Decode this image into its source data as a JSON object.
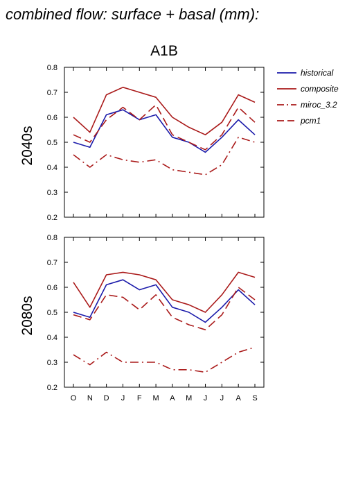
{
  "page": {
    "title": "combined flow: surface + basal (mm):"
  },
  "chart_data": {
    "type": "line",
    "title": "A1B",
    "categories": [
      "O",
      "N",
      "D",
      "J",
      "F",
      "M",
      "A",
      "M",
      "J",
      "J",
      "A",
      "S"
    ],
    "ylim": [
      0.2,
      0.8
    ],
    "yticks": [
      "0.2",
      "0.3",
      "0.4",
      "0.5",
      "0.6",
      "0.7",
      "0.8"
    ],
    "grid": false,
    "legend_placement": "right",
    "legend": [
      {
        "name": "historical",
        "color": "#1a1aaa",
        "dash": "solid"
      },
      {
        "name": "composite",
        "color": "#aa1a1a",
        "dash": "solid"
      },
      {
        "name": "miroc_3.2",
        "color": "#aa1a1a",
        "dash": "dashdot"
      },
      {
        "name": "pcm1",
        "color": "#aa1a1a",
        "dash": "longdash"
      }
    ],
    "panels": [
      {
        "ylabel": "2040s",
        "series": [
          {
            "name": "historical",
            "values": [
              0.5,
              0.48,
              0.61,
              0.63,
              0.59,
              0.61,
              0.52,
              0.5,
              0.46,
              0.52,
              0.59,
              0.53
            ]
          },
          {
            "name": "composite",
            "values": [
              0.6,
              0.54,
              0.69,
              0.72,
              0.7,
              0.68,
              0.6,
              0.56,
              0.53,
              0.58,
              0.69,
              0.66
            ]
          },
          {
            "name": "miroc_3.2",
            "values": [
              0.45,
              0.4,
              0.45,
              0.43,
              0.42,
              0.43,
              0.39,
              0.38,
              0.37,
              0.41,
              0.52,
              0.5
            ]
          },
          {
            "name": "pcm1",
            "values": [
              0.53,
              0.5,
              0.59,
              0.64,
              0.59,
              0.65,
              0.53,
              0.5,
              0.47,
              0.53,
              0.64,
              0.58
            ]
          }
        ]
      },
      {
        "ylabel": "2080s",
        "series": [
          {
            "name": "historical",
            "values": [
              0.5,
              0.48,
              0.61,
              0.63,
              0.59,
              0.61,
              0.52,
              0.5,
              0.46,
              0.52,
              0.59,
              0.53
            ]
          },
          {
            "name": "composite",
            "values": [
              0.62,
              0.52,
              0.65,
              0.66,
              0.65,
              0.63,
              0.55,
              0.53,
              0.5,
              0.57,
              0.66,
              0.64
            ]
          },
          {
            "name": "miroc_3.2",
            "values": [
              0.33,
              0.29,
              0.34,
              0.3,
              0.3,
              0.3,
              0.27,
              0.27,
              0.26,
              0.3,
              0.34,
              0.36
            ]
          },
          {
            "name": "pcm1",
            "values": [
              0.49,
              0.47,
              0.57,
              0.56,
              0.51,
              0.57,
              0.48,
              0.45,
              0.43,
              0.49,
              0.6,
              0.55
            ]
          }
        ]
      }
    ]
  }
}
